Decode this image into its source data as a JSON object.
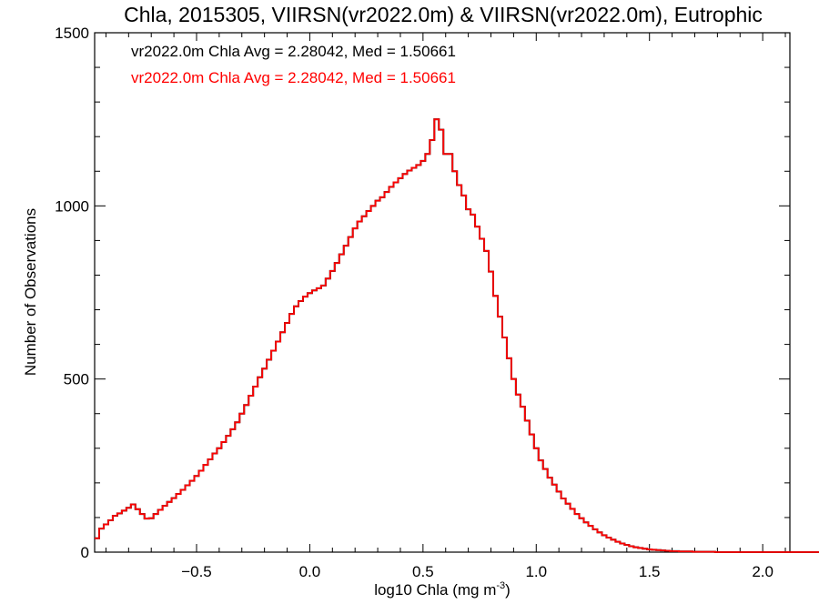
{
  "chart_data": {
    "type": "line",
    "title": "Chla, 2015305, VIIRSN(vr2022.0m) & VIIRSN(vr2022.0m), Eutrophic",
    "xlabel": "log10 Chla (mg m",
    "xlabel_sup": "-3",
    "xlabel_close": ")",
    "ylabel": "Number of Observations",
    "xlim": [
      -0.95,
      2.12
    ],
    "ylim": [
      0,
      1500
    ],
    "xticks": [
      -0.5,
      0.0,
      0.5,
      1.0,
      1.5,
      2.0
    ],
    "xtick_labels": [
      "−0.5",
      "0.0",
      "0.5",
      "1.0",
      "1.5",
      "2.0"
    ],
    "yticks": [
      0,
      500,
      1000,
      1500
    ],
    "ytick_labels": [
      "0",
      "500",
      "1000",
      "1500"
    ],
    "grid": false,
    "annotations": [
      {
        "text": "vr2022.0m Chla Avg = 2.28042, Med = 1.50661",
        "color": "#000000"
      },
      {
        "text": "vr2022.0m Chla Avg = 2.28042, Med = 1.50661",
        "color": "#ff0000"
      }
    ],
    "series": [
      {
        "color": "#000000",
        "bin_width": 0.02,
        "x_start": -0.95,
        "values": [
          40,
          68,
          80,
          92,
          105,
          112,
          120,
          128,
          138,
          124,
          110,
          97,
          98,
          110,
          122,
          134,
          145,
          156,
          168,
          180,
          193,
          206,
          220,
          235,
          252,
          268,
          285,
          300,
          318,
          336,
          355,
          375,
          400,
          425,
          452,
          478,
          505,
          530,
          556,
          582,
          608,
          635,
          662,
          688,
          710,
          725,
          738,
          748,
          756,
          762,
          770,
          790,
          812,
          835,
          860,
          885,
          910,
          935,
          955,
          970,
          985,
          1000,
          1015,
          1025,
          1040,
          1055,
          1068,
          1080,
          1092,
          1102,
          1110,
          1118,
          1130,
          1150,
          1190,
          1250,
          1220,
          1150,
          1150,
          1100,
          1060,
          1030,
          990,
          975,
          940,
          905,
          870,
          810,
          740,
          680,
          620,
          560,
          500,
          455,
          420,
          380,
          340,
          300,
          265,
          240,
          215,
          195,
          175,
          155,
          140,
          125,
          110,
          98,
          86,
          76,
          66,
          57,
          49,
          42,
          36,
          30,
          25,
          21,
          17,
          14,
          12,
          10,
          8,
          7,
          6,
          5,
          4,
          3,
          3,
          2,
          2,
          2,
          1,
          1,
          1,
          1,
          1,
          0,
          0,
          0,
          0,
          0,
          0,
          0,
          0,
          0,
          0,
          0,
          0,
          0,
          0,
          0,
          0,
          0,
          0,
          0,
          0,
          0,
          0,
          0,
          0,
          0,
          0,
          0
        ]
      },
      {
        "color": "#ff0000",
        "bin_width": 0.02,
        "x_start": -0.95,
        "values": [
          40,
          68,
          80,
          92,
          105,
          112,
          120,
          128,
          138,
          124,
          110,
          97,
          98,
          110,
          122,
          134,
          145,
          156,
          168,
          180,
          193,
          206,
          220,
          235,
          252,
          268,
          285,
          300,
          318,
          336,
          355,
          375,
          400,
          425,
          452,
          478,
          505,
          530,
          556,
          582,
          608,
          635,
          662,
          688,
          710,
          725,
          738,
          748,
          756,
          762,
          770,
          790,
          812,
          835,
          860,
          885,
          910,
          935,
          955,
          970,
          985,
          1000,
          1015,
          1025,
          1040,
          1055,
          1068,
          1080,
          1092,
          1102,
          1110,
          1118,
          1130,
          1150,
          1190,
          1250,
          1220,
          1150,
          1150,
          1100,
          1060,
          1030,
          990,
          975,
          940,
          905,
          870,
          810,
          740,
          680,
          620,
          560,
          500,
          455,
          420,
          380,
          340,
          300,
          265,
          240,
          215,
          195,
          175,
          155,
          140,
          125,
          110,
          98,
          86,
          76,
          66,
          57,
          49,
          42,
          36,
          30,
          25,
          21,
          17,
          14,
          12,
          10,
          8,
          7,
          6,
          5,
          4,
          3,
          3,
          2,
          2,
          2,
          1,
          1,
          1,
          1,
          1,
          0,
          0,
          0,
          0,
          0,
          0,
          0,
          0,
          0,
          0,
          0,
          0,
          0,
          0,
          0,
          0,
          0,
          0,
          0,
          0,
          0,
          0,
          0,
          0,
          0,
          0,
          0
        ]
      }
    ]
  }
}
